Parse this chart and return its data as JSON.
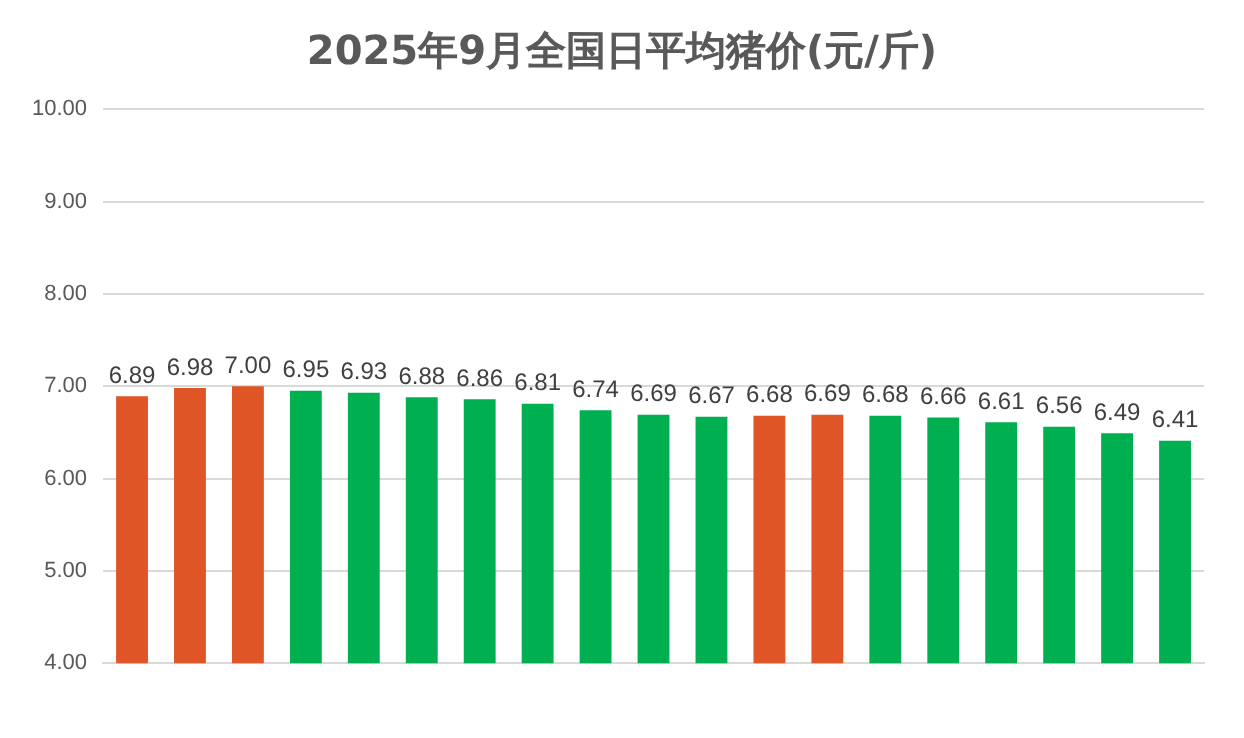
{
  "chart_data": {
    "type": "bar",
    "title": "2025年9月全国日平均猪价(元/斤)",
    "categories": [
      null,
      null,
      null,
      null,
      null,
      null,
      null,
      null,
      null,
      null,
      null,
      null,
      null,
      null,
      null,
      null,
      null,
      null,
      null
    ],
    "values": [
      6.89,
      6.98,
      7.0,
      6.95,
      6.93,
      6.88,
      6.86,
      6.81,
      6.74,
      6.69,
      6.67,
      6.68,
      6.69,
      6.68,
      6.66,
      6.61,
      6.56,
      6.49,
      6.41
    ],
    "colors": [
      "#e05526",
      "#e05526",
      "#e05526",
      "#00b050",
      "#00b050",
      "#00b050",
      "#00b050",
      "#00b050",
      "#00b050",
      "#00b050",
      "#00b050",
      "#e05526",
      "#e05526",
      "#00b050",
      "#00b050",
      "#00b050",
      "#00b050",
      "#00b050",
      "#00b050"
    ],
    "value_labels": [
      "6.89",
      "6.98",
      "7.00",
      "6.95",
      "6.93",
      "6.88",
      "6.86",
      "6.81",
      "6.74",
      "6.69",
      "6.67",
      "6.68",
      "6.69",
      "6.68",
      "6.66",
      "6.61",
      "6.56",
      "6.49",
      "6.41"
    ],
    "ylim": [
      4,
      10
    ],
    "yticks": [
      {
        "value": 4,
        "label": "4.00"
      },
      {
        "value": 5,
        "label": "5.00"
      },
      {
        "value": 6,
        "label": "6.00"
      },
      {
        "value": 7,
        "label": "7.00"
      },
      {
        "value": 8,
        "label": "8.00"
      },
      {
        "value": 9,
        "label": "9.00"
      },
      {
        "value": 10,
        "label": "10.00"
      }
    ],
    "grid": "y",
    "legend": false
  }
}
